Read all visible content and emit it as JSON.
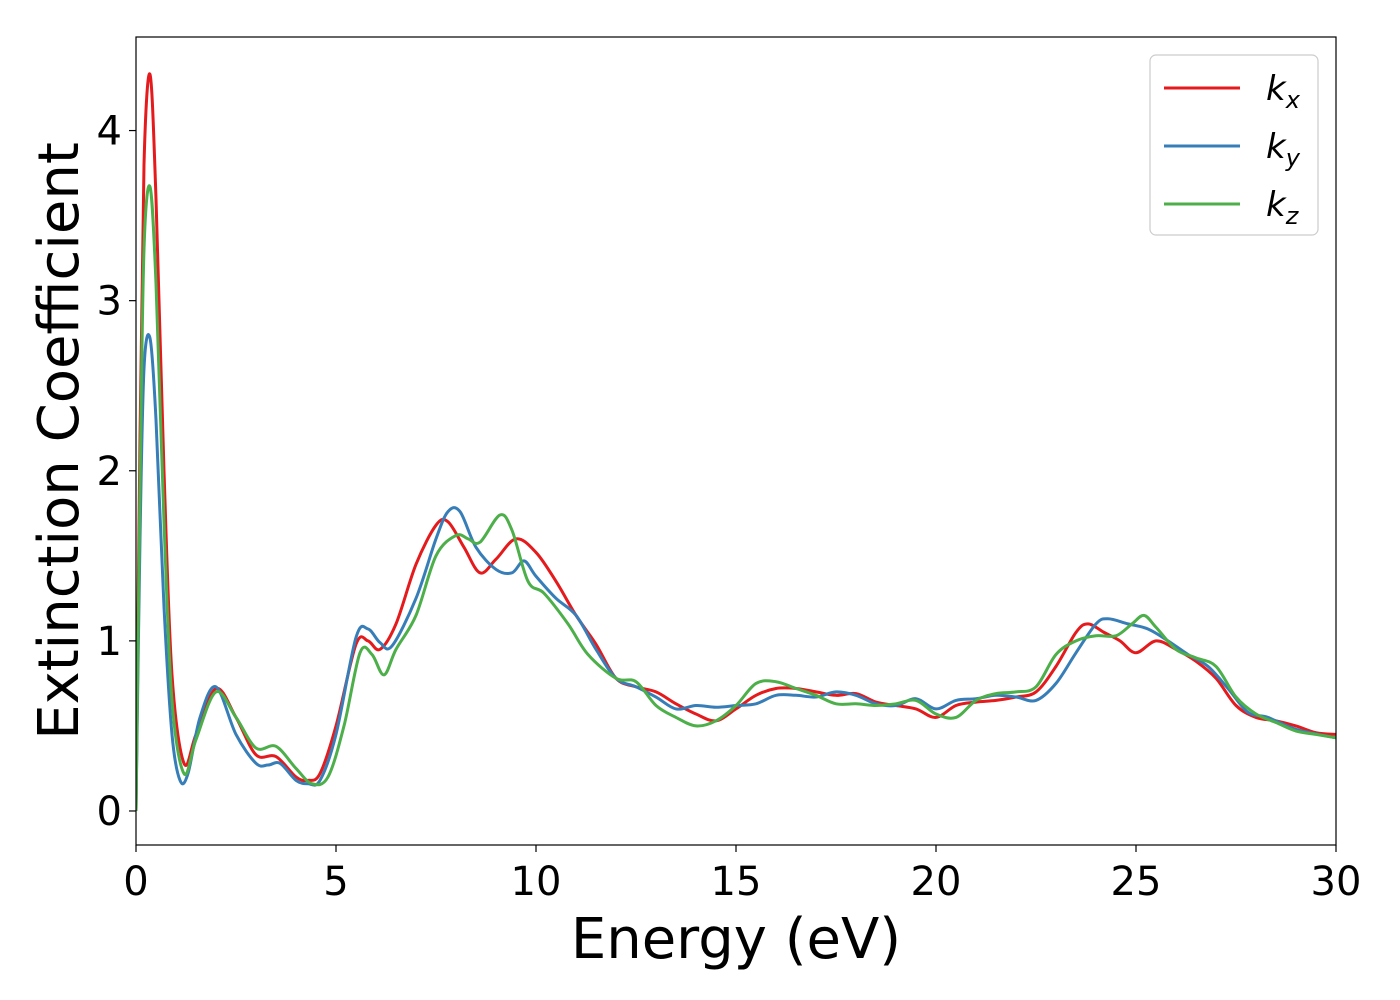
{
  "chart_data": {
    "type": "line",
    "title": "",
    "xlabel": "Energy (eV)",
    "ylabel": "Extinction Coefficient",
    "xlim": [
      0,
      30
    ],
    "ylim": [
      -0.2,
      4.55
    ],
    "xticks": [
      0,
      5,
      10,
      15,
      20,
      25,
      30
    ],
    "xtick_labels": [
      "0",
      "5",
      "10",
      "15",
      "20",
      "25",
      "30"
    ],
    "yticks": [
      0,
      1,
      2,
      3,
      4
    ],
    "ytick_labels": [
      "0",
      "1",
      "2",
      "3",
      "4"
    ],
    "grid": false,
    "legend_position": "top-right",
    "series": [
      {
        "name": "k",
        "subscript": "x",
        "color": "#e41a1c",
        "x": [
          0,
          0.1,
          0.2,
          0.35,
          0.5,
          0.7,
          0.9,
          1.2,
          1.5,
          2.0,
          2.5,
          3.0,
          3.5,
          4.0,
          4.3,
          4.6,
          5.0,
          5.5,
          5.8,
          6.1,
          6.5,
          7.0,
          7.5,
          7.8,
          8.2,
          8.6,
          9.0,
          9.5,
          10.0,
          10.5,
          11.0,
          11.5,
          12.0,
          12.5,
          13.0,
          13.5,
          14.0,
          14.5,
          15.0,
          15.5,
          16.0,
          16.5,
          17.0,
          17.5,
          18.0,
          18.5,
          19.0,
          19.5,
          20.0,
          20.5,
          21.0,
          21.5,
          22.0,
          22.5,
          23.0,
          23.5,
          23.8,
          24.2,
          24.6,
          25.0,
          25.5,
          26.0,
          26.5,
          27.0,
          27.5,
          28.0,
          28.5,
          29.0,
          29.5,
          30.0
        ],
        "y": [
          0.0,
          2.2,
          3.8,
          4.33,
          3.6,
          2.0,
          0.8,
          0.28,
          0.45,
          0.72,
          0.55,
          0.33,
          0.32,
          0.2,
          0.18,
          0.22,
          0.5,
          0.98,
          1.0,
          0.95,
          1.1,
          1.45,
          1.68,
          1.7,
          1.55,
          1.4,
          1.48,
          1.6,
          1.52,
          1.35,
          1.15,
          0.98,
          0.78,
          0.73,
          0.7,
          0.63,
          0.57,
          0.53,
          0.6,
          0.68,
          0.72,
          0.72,
          0.7,
          0.68,
          0.69,
          0.64,
          0.62,
          0.6,
          0.55,
          0.62,
          0.64,
          0.65,
          0.67,
          0.7,
          0.85,
          1.05,
          1.1,
          1.05,
          1.0,
          0.93,
          1.0,
          0.95,
          0.88,
          0.78,
          0.62,
          0.55,
          0.53,
          0.5,
          0.46,
          0.45
        ]
      },
      {
        "name": "k",
        "subscript": "y",
        "color": "#377eb8",
        "x": [
          0,
          0.1,
          0.2,
          0.35,
          0.5,
          0.7,
          0.9,
          1.1,
          1.3,
          1.6,
          2.0,
          2.5,
          3.0,
          3.3,
          3.6,
          4.0,
          4.3,
          4.6,
          5.0,
          5.5,
          5.8,
          6.1,
          6.4,
          7.0,
          7.5,
          7.8,
          8.1,
          8.5,
          9.0,
          9.4,
          9.7,
          10.0,
          10.5,
          11.0,
          11.5,
          12.0,
          12.5,
          13.0,
          13.5,
          14.0,
          14.5,
          15.0,
          15.5,
          16.0,
          16.5,
          17.0,
          17.5,
          18.0,
          18.5,
          19.0,
          19.5,
          20.0,
          20.5,
          21.0,
          21.5,
          22.0,
          22.5,
          23.0,
          23.5,
          24.0,
          24.3,
          24.8,
          25.3,
          25.8,
          26.3,
          26.8,
          27.3,
          27.8,
          28.3,
          29.0,
          30.0
        ],
        "y": [
          0.0,
          1.6,
          2.6,
          2.78,
          2.3,
          1.2,
          0.45,
          0.18,
          0.22,
          0.55,
          0.73,
          0.45,
          0.28,
          0.27,
          0.28,
          0.18,
          0.16,
          0.18,
          0.45,
          1.02,
          1.07,
          0.99,
          0.97,
          1.25,
          1.6,
          1.76,
          1.76,
          1.55,
          1.42,
          1.4,
          1.47,
          1.38,
          1.25,
          1.15,
          0.95,
          0.78,
          0.73,
          0.67,
          0.6,
          0.62,
          0.61,
          0.62,
          0.63,
          0.68,
          0.68,
          0.67,
          0.7,
          0.68,
          0.63,
          0.62,
          0.66,
          0.6,
          0.65,
          0.66,
          0.68,
          0.67,
          0.65,
          0.75,
          0.93,
          1.1,
          1.13,
          1.1,
          1.07,
          1.0,
          0.92,
          0.85,
          0.72,
          0.58,
          0.55,
          0.48,
          0.43
        ]
      },
      {
        "name": "k",
        "subscript": "z",
        "color": "#4daf4a",
        "x": [
          0,
          0.1,
          0.2,
          0.35,
          0.5,
          0.7,
          0.9,
          1.2,
          1.5,
          2.0,
          2.5,
          3.0,
          3.5,
          4.0,
          4.4,
          4.8,
          5.2,
          5.6,
          5.9,
          6.2,
          6.5,
          7.0,
          7.5,
          8.0,
          8.3,
          8.6,
          9.1,
          9.4,
          9.8,
          10.2,
          10.8,
          11.3,
          12.0,
          12.5,
          13.0,
          13.5,
          14.0,
          14.5,
          15.0,
          15.5,
          16.0,
          16.5,
          17.0,
          17.5,
          18.0,
          18.5,
          19.0,
          19.5,
          20.0,
          20.5,
          21.0,
          21.5,
          22.0,
          22.5,
          23.0,
          23.5,
          24.0,
          24.5,
          24.9,
          25.2,
          25.5,
          26.0,
          26.5,
          27.0,
          27.5,
          28.0,
          28.5,
          29.0,
          29.5,
          30.0
        ],
        "y": [
          0.0,
          1.9,
          3.3,
          3.67,
          3.1,
          1.7,
          0.65,
          0.22,
          0.42,
          0.7,
          0.55,
          0.37,
          0.38,
          0.25,
          0.16,
          0.2,
          0.5,
          0.93,
          0.92,
          0.8,
          0.95,
          1.15,
          1.5,
          1.62,
          1.6,
          1.58,
          1.74,
          1.65,
          1.35,
          1.28,
          1.1,
          0.92,
          0.78,
          0.76,
          0.62,
          0.55,
          0.5,
          0.53,
          0.62,
          0.75,
          0.76,
          0.72,
          0.68,
          0.63,
          0.63,
          0.62,
          0.63,
          0.65,
          0.57,
          0.55,
          0.65,
          0.69,
          0.7,
          0.73,
          0.92,
          1.0,
          1.03,
          1.03,
          1.1,
          1.15,
          1.08,
          0.95,
          0.9,
          0.85,
          0.67,
          0.57,
          0.52,
          0.47,
          0.45,
          0.43
        ]
      }
    ]
  }
}
